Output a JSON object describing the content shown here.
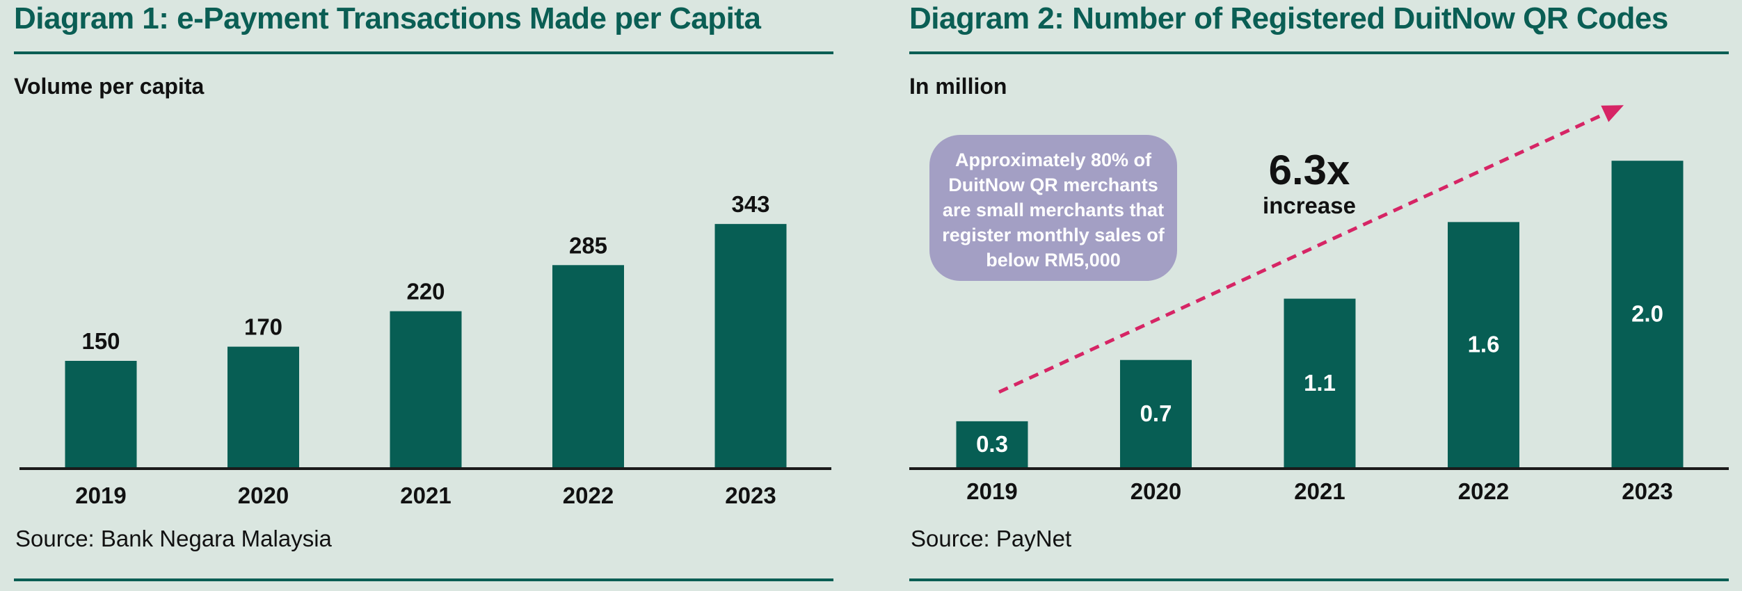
{
  "colors": {
    "background": "#dae6e0",
    "bar": "#075e54",
    "accent": "#0a5e54",
    "callout": "#a39fc4",
    "arrow": "#d62565"
  },
  "chart_data": [
    {
      "type": "bar",
      "title": "Diagram 1: e-Payment Transactions Made per Capita",
      "subtitle": "Volume per capita",
      "categories": [
        "2019",
        "2020",
        "2021",
        "2022",
        "2023"
      ],
      "values": [
        150,
        170,
        220,
        285,
        343
      ],
      "value_labels": [
        "150",
        "170",
        "220",
        "285",
        "343"
      ],
      "label_position": "above",
      "ylim": [
        0,
        500
      ],
      "grid": false,
      "source": "Source: Bank Negara Malaysia"
    },
    {
      "type": "bar",
      "title": "Diagram 2: Number of Registered DuitNow QR Codes",
      "subtitle": "In million",
      "categories": [
        "2019",
        "2020",
        "2021",
        "2022",
        "2023"
      ],
      "values": [
        0.3,
        0.7,
        1.1,
        1.6,
        2.0
      ],
      "value_labels": [
        "0.3",
        "0.7",
        "1.1",
        "1.6",
        "2.0"
      ],
      "label_position": "inside",
      "ylim": [
        0,
        2.5
      ],
      "grid": false,
      "source": "Source: PayNet",
      "annotations": {
        "callout_lines": [
          "Approximately 80% of",
          "DuitNow QR merchants",
          "are small merchants that",
          "register monthly sales of",
          "below RM5,000"
        ],
        "increase_value": "6.3x",
        "increase_label": "increase",
        "trend_arrow": "dashed"
      }
    }
  ]
}
